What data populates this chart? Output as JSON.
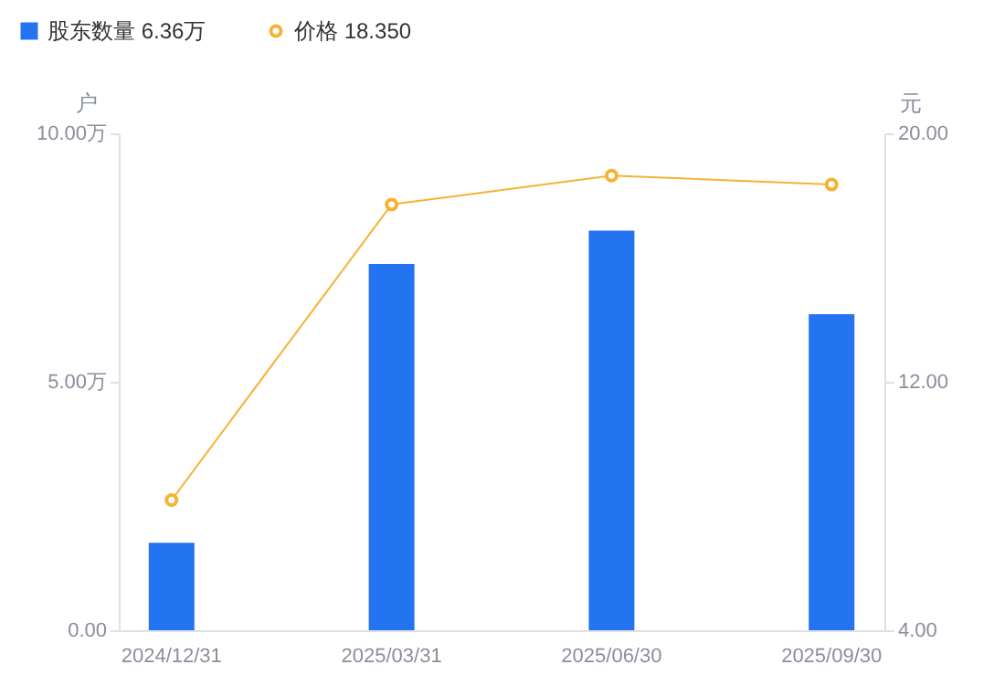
{
  "chart_data": {
    "type": "bar",
    "categories": [
      "2024/12/31",
      "2025/03/31",
      "2025/06/30",
      "2025/09/30"
    ],
    "series": [
      {
        "name": "股东数量 6.36万",
        "color": "#2474f2",
        "values": [
          1.76,
          7.37,
          8.04,
          6.36
        ]
      },
      {
        "name": "价格 18.350",
        "type": "line",
        "axis": "y2",
        "color": "#f5b335",
        "marker": "circle",
        "values": [
          8.19,
          17.71,
          18.64,
          18.35
        ]
      }
    ],
    "ylabel": "户",
    "y2label": "元",
    "ylim": [
      0,
      10
    ],
    "yticks": [
      {
        "value": 0,
        "label": "0.00"
      },
      {
        "value": 5,
        "label": "5.00万"
      },
      {
        "value": 10,
        "label": "10.00万"
      }
    ],
    "y2lim": [
      4,
      20
    ],
    "y2ticks": [
      {
        "value": 4,
        "label": "4.00"
      },
      {
        "value": 12,
        "label": "12.00"
      },
      {
        "value": 20,
        "label": "20.00"
      }
    ],
    "legend": "top left",
    "grid": false
  }
}
